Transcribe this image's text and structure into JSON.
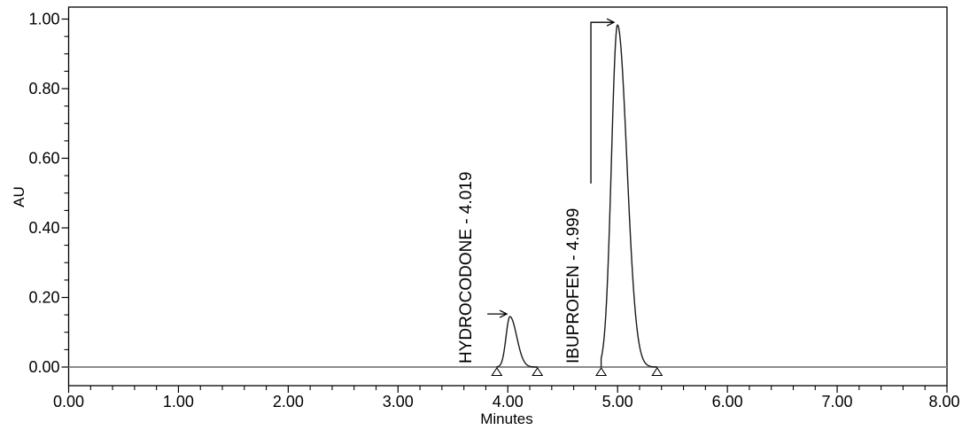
{
  "page": {
    "background": "#ffffff"
  },
  "axis_titles": {
    "y": "AU",
    "x": "Minutes"
  },
  "chart_data": {
    "type": "line",
    "subtype": "chromatogram",
    "title": "",
    "xlabel": "Minutes",
    "ylabel": "AU",
    "grid": "off",
    "legend": "none",
    "x_axis": {
      "min": 0,
      "max": 8,
      "major_step": 1.0,
      "minor_step": 0.2,
      "tick_labels": [
        "0.00",
        "1.00",
        "2.00",
        "3.00",
        "4.00",
        "5.00",
        "6.00",
        "7.00",
        "8.00"
      ]
    },
    "y_axis": {
      "min": 0,
      "max": 1.0,
      "major_step": 0.2,
      "minor_step": 0.05,
      "tick_labels": [
        "0.00",
        "0.20",
        "0.40",
        "0.60",
        "0.80",
        "1.00"
      ]
    },
    "baseline_au": 0.0,
    "peaks": [
      {
        "name": "HYDROCODONE",
        "retention_time": 4.019,
        "label": "HYDROCODONE - 4.019",
        "apex_au": 0.145,
        "sigma_left_min": 0.035,
        "sigma_right_min": 0.062,
        "integration_start_min": 3.9,
        "integration_end_min": 4.27,
        "callout": "arrow-side"
      },
      {
        "name": "IBUPROFEN",
        "retention_time": 4.999,
        "label": "IBUPROFEN - 4.999",
        "apex_au": 0.983,
        "sigma_left_min": 0.055,
        "sigma_right_min": 0.085,
        "integration_start_min": 4.85,
        "integration_end_min": 5.36,
        "callout": "arrow-top"
      }
    ],
    "colors": {
      "axis": "#000000",
      "text": "#000000",
      "trace": "#1a1a1a",
      "zero_line": "#8c8c8c",
      "marker_fill": "#ffffff"
    }
  }
}
